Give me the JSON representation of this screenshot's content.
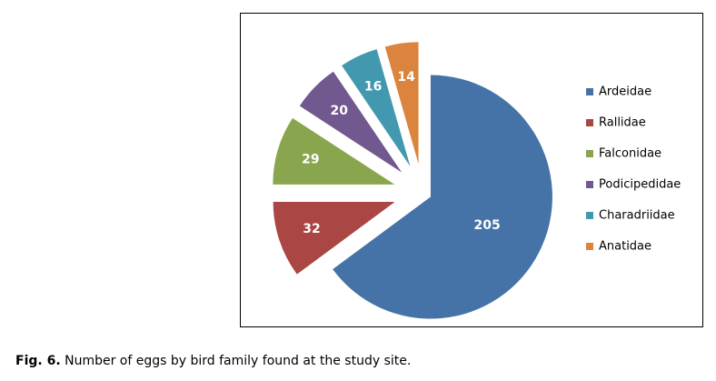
{
  "caption": {
    "label": "Fig. 6.",
    "text": "Number of eggs by bird family found at the study site."
  },
  "chart_data": {
    "type": "pie",
    "exploded": true,
    "legend_position": "right",
    "categories": [
      "Ardeidae",
      "Rallidae",
      "Falconidae",
      "Podicipedidae",
      "Charadriidae",
      "Anatidae"
    ],
    "values": [
      205,
      32,
      29,
      20,
      16,
      14
    ],
    "colors": [
      "#4572A7",
      "#AA4643",
      "#89A54E",
      "#71588F",
      "#4198AF",
      "#DB843D"
    ],
    "title": "",
    "data_labels": true
  }
}
